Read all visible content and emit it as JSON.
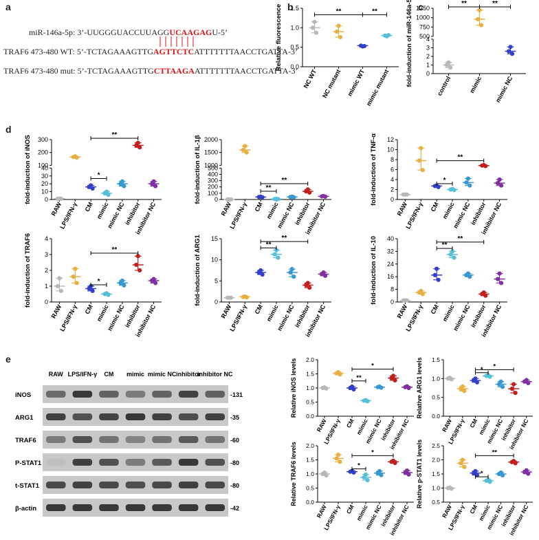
{
  "panels": {
    "a": "a",
    "b": "b",
    "c": "c",
    "d": "d",
    "e": "e"
  },
  "seq": {
    "mir_pre": "miR-146a-5p: 3’-UUGGGUACCUUAGG",
    "mir_hl": "UCAAGAG",
    "mir_post": "U-5’",
    "wt_pre": "TRAF6 473-480 WT: 5’-TCTAGAAAGTTG",
    "wt_hl": "AGTTCTC",
    "wt_post": "ATTTTTTTAACCTGATTA-3’",
    "mut_pre": "TRAF6 473-480 mut: 5’-TCTAGAAAGTTG",
    "mut_hl": "CTTAAGA",
    "mut_post": "ATTTTTTTAACCTGATTA-3’"
  },
  "chart_data": [
    {
      "id": "b",
      "type": "scatter",
      "ylabel": "Relative fluorescence",
      "categories": [
        "NC WT",
        "NC mutant",
        "mimic WT",
        "mimic mutant"
      ],
      "colors": [
        "#b8b8b8",
        "#e8b040",
        "#3540c8",
        "#55c0d8"
      ],
      "ylim": [
        0,
        1.5
      ],
      "yticks": [
        0,
        0.5,
        1,
        1.5
      ],
      "ytick_labels": [
        "0.0",
        "0.5",
        "1.0",
        "1.5"
      ],
      "values": [
        [
          1.0,
          1.15,
          0.87
        ],
        [
          0.9,
          1.05,
          0.76
        ],
        [
          0.54,
          0.52,
          0.53
        ],
        [
          0.8,
          0.78,
          0.81
        ]
      ],
      "sig": [
        {
          "from": 0,
          "to": 2,
          "level": 1.3,
          "text": "**"
        },
        {
          "from": 2,
          "to": 3,
          "level": 1.3,
          "text": "**"
        }
      ]
    },
    {
      "id": "c",
      "type": "scatter",
      "ylabel": "fold-induction of miR-146a-5p",
      "categories": [
        "control",
        "mimic",
        "mimic NC"
      ],
      "colors": [
        "#b8b8b8",
        "#e8b040",
        "#3540c8"
      ],
      "ylim": [
        0,
        1250
      ],
      "yticks": [
        0,
        1,
        2,
        3,
        4,
        500,
        750,
        1000,
        1250
      ],
      "ytick_labels": [
        "0",
        "1",
        "2",
        "3",
        "4",
        "500",
        "750",
        "1000",
        "1250"
      ],
      "break": [
        4,
        500
      ],
      "values": [
        [
          1.0,
          1.3,
          0.7
        ],
        [
          960,
          1200,
          800
        ],
        [
          2.6,
          3.1,
          2.3
        ]
      ],
      "sig": [
        {
          "from": 0,
          "to": 1,
          "level": 1300,
          "text": "**"
        },
        {
          "from": 1,
          "to": 2,
          "level": 1300,
          "text": "**"
        }
      ]
    },
    {
      "id": "d1",
      "type": "scatter",
      "ylabel": "fold-induction of iNOS",
      "categories": [
        "RAW",
        "LPS/IFN-γ",
        "CM",
        "mimic",
        "mimic NC",
        "inhibitor",
        "inhibitor NC"
      ],
      "colors": [
        "#b8b8b8",
        "#e8b040",
        "#3540c8",
        "#55c0d8",
        "#3898d0",
        "#c02020",
        "#8030a0"
      ],
      "ylim": [
        0,
        300
      ],
      "yticks": [
        0,
        10,
        20,
        30,
        40,
        100,
        200,
        300
      ],
      "ytick_labels": [
        "0",
        "10",
        "20",
        "30",
        "40",
        "100",
        "200",
        "300"
      ],
      "break": [
        40,
        100
      ],
      "values": [
        [
          1,
          1.1,
          0.9
        ],
        [
          165,
          170,
          160
        ],
        [
          16,
          18,
          14
        ],
        [
          8,
          10,
          6
        ],
        [
          20,
          23,
          17
        ],
        [
          255,
          275,
          240
        ],
        [
          20,
          23,
          17
        ]
      ],
      "sig": [
        {
          "from": 2,
          "to": 3,
          "level": 25,
          "text": "*"
        },
        {
          "from": 2,
          "to": 5,
          "level": 300,
          "text": "**"
        }
      ]
    },
    {
      "id": "d2",
      "type": "scatter",
      "ylabel": "fold-induction of IL-1β",
      "categories": [
        "RAW",
        "LPS/IFN-γ",
        "CM",
        "mimic",
        "mimic NC",
        "inhibitor",
        "inhibitor NC"
      ],
      "colors": [
        "#b8b8b8",
        "#e8b040",
        "#3540c8",
        "#55c0d8",
        "#3898d0",
        "#c02020",
        "#8030a0"
      ],
      "ylim": [
        0,
        2000
      ],
      "yticks": [
        0,
        100,
        200,
        300,
        400,
        500,
        1000,
        1500,
        2000
      ],
      "ytick_labels": [
        "0",
        "100",
        "200",
        "300",
        "400",
        "500",
        "1000",
        "1500",
        "2000"
      ],
      "break": [
        500,
        1000
      ],
      "values": [
        [
          1,
          1,
          1
        ],
        [
          1600,
          1750,
          1500
        ],
        [
          40,
          45,
          35
        ],
        [
          8,
          10,
          6
        ],
        [
          40,
          45,
          35
        ],
        [
          130,
          160,
          110
        ],
        [
          50,
          55,
          45
        ]
      ],
      "sig": [
        {
          "from": 2,
          "to": 3,
          "level": 110,
          "text": "**"
        },
        {
          "from": 2,
          "to": 5,
          "level": 230,
          "text": "**"
        }
      ]
    },
    {
      "id": "d3",
      "type": "scatter",
      "ylabel": "fold-induction of TNF-α",
      "categories": [
        "RAW",
        "LPS/IFN-γ",
        "CM",
        "mimic",
        "mimic NC",
        "inhibitor",
        "inhibitor NC"
      ],
      "colors": [
        "#b8b8b8",
        "#e8b040",
        "#3540c8",
        "#55c0d8",
        "#3898d0",
        "#c02020",
        "#8030a0"
      ],
      "ylim": [
        0,
        12
      ],
      "yticks": [
        0,
        2,
        4,
        6,
        8,
        10,
        12
      ],
      "ytick_labels": [
        "0",
        "2",
        "4",
        "6",
        "8",
        "10",
        "12"
      ],
      "values": [
        [
          1,
          1,
          1
        ],
        [
          7.8,
          10.3,
          5.9
        ],
        [
          2.7,
          2.8,
          2.5
        ],
        [
          2.0,
          2.1,
          1.9
        ],
        [
          3.4,
          4.2,
          2.8
        ],
        [
          6.8,
          6.9,
          6.7
        ],
        [
          3.3,
          4.0,
          2.8
        ]
      ],
      "sig": [
        {
          "from": 2,
          "to": 3,
          "level": 2.9,
          "text": "*"
        },
        {
          "from": 2,
          "to": 5,
          "level": 7.5,
          "text": "**"
        }
      ]
    },
    {
      "id": "d4",
      "type": "scatter",
      "ylabel": "fold-induction of TRAF6",
      "categories": [
        "RAW",
        "LPS/IFN-γ",
        "CM",
        "mimic",
        "mimic NC",
        "inhibitor",
        "inhibitor NC"
      ],
      "colors": [
        "#b8b8b8",
        "#e8b040",
        "#3540c8",
        "#55c0d8",
        "#3898d0",
        "#c02020",
        "#8030a0"
      ],
      "ylim": [
        0,
        4
      ],
      "yticks": [
        0,
        1,
        2,
        3,
        4
      ],
      "ytick_labels": [
        "0",
        "1",
        "2",
        "3",
        "4"
      ],
      "values": [
        [
          1,
          1.5,
          0.7
        ],
        [
          1.6,
          2.1,
          1.2
        ],
        [
          0.85,
          1.0,
          0.7
        ],
        [
          0.5,
          0.55,
          0.45
        ],
        [
          1.2,
          1.35,
          1.05
        ],
        [
          2.35,
          2.9,
          2.0
        ],
        [
          1.35,
          1.45,
          1.2
        ]
      ],
      "sig": [
        {
          "from": 2,
          "to": 3,
          "level": 1.0,
          "text": "*"
        },
        {
          "from": 2,
          "to": 5,
          "level": 3.0,
          "text": "**"
        }
      ]
    },
    {
      "id": "d5",
      "type": "scatter",
      "ylabel": "fold-induction of ARG1",
      "categories": [
        "RAW",
        "LPS/IFN-γ",
        "CM",
        "mimic",
        "mimic NC",
        "inhibitor",
        "inhibitor NC"
      ],
      "colors": [
        "#b8b8b8",
        "#e8b040",
        "#3540c8",
        "#55c0d8",
        "#3898d0",
        "#c02020",
        "#8030a0"
      ],
      "ylim": [
        0,
        15
      ],
      "yticks": [
        0,
        5,
        10,
        15
      ],
      "ytick_labels": [
        "0",
        "5",
        "10",
        "15"
      ],
      "values": [
        [
          1,
          1,
          1
        ],
        [
          1.2,
          1.3,
          1.1
        ],
        [
          7,
          7.5,
          6.5
        ],
        [
          11.3,
          12.3,
          10.5
        ],
        [
          7,
          7.8,
          6.0
        ],
        [
          4,
          4.5,
          3.4
        ],
        [
          6.6,
          7.0,
          6.2
        ]
      ],
      "sig": [
        {
          "from": 2,
          "to": 3,
          "level": 12.5,
          "text": "**"
        },
        {
          "from": 2,
          "to": 5,
          "level": 14,
          "text": "**"
        }
      ]
    },
    {
      "id": "d6",
      "type": "scatter",
      "ylabel": "fold-induction of IL-10",
      "categories": [
        "RAW",
        "LPS/IFN-γ",
        "CM",
        "mimic",
        "mimic NC",
        "inhibitor",
        "inhibitor NC"
      ],
      "colors": [
        "#b8b8b8",
        "#e8b040",
        "#3540c8",
        "#55c0d8",
        "#3898d0",
        "#c02020",
        "#8030a0"
      ],
      "ylim": [
        0,
        40
      ],
      "yticks": [
        0,
        8,
        16,
        24,
        32,
        40
      ],
      "ytick_labels": [
        "0",
        "8",
        "16",
        "24",
        "32",
        "40"
      ],
      "values": [
        [
          1,
          1,
          1
        ],
        [
          6,
          7,
          5
        ],
        [
          17,
          21,
          14
        ],
        [
          30,
          32,
          28
        ],
        [
          17,
          18,
          16
        ],
        [
          5,
          6,
          4
        ],
        [
          14.5,
          18,
          12
        ]
      ],
      "sig": [
        {
          "from": 2,
          "to": 3,
          "level": 33,
          "text": "**"
        },
        {
          "from": 2,
          "to": 5,
          "level": 37,
          "text": "**"
        }
      ]
    },
    {
      "id": "e1",
      "type": "scatter",
      "ylabel": "Relative iNOS levels",
      "categories": [
        "RAW",
        "LPS/IFN-γ",
        "CM",
        "mimic",
        "mimic NC",
        "inhibitor",
        "inhibitor NC"
      ],
      "colors": [
        "#b8b8b8",
        "#e8b040",
        "#3540c8",
        "#55c0d8",
        "#3898d0",
        "#c02020",
        "#8030a0"
      ],
      "ylim": [
        0,
        2.0
      ],
      "yticks": [
        0,
        0.5,
        1.0,
        1.5,
        2.0
      ],
      "ytick_labels": [
        "0.0",
        "0.5",
        "1.0",
        "1.5",
        "2.0"
      ],
      "values": [
        [
          1.0,
          1.02,
          0.98
        ],
        [
          1.52,
          1.56,
          1.48
        ],
        [
          1.0,
          1.05,
          0.95
        ],
        [
          0.55,
          0.57,
          0.53
        ],
        [
          1.03,
          1.05,
          1.01
        ],
        [
          1.35,
          1.43,
          1.27
        ],
        [
          1.03,
          1.06,
          1.0
        ]
      ],
      "sig": [
        {
          "from": 2,
          "to": 3,
          "level": 1.2,
          "text": "**"
        },
        {
          "from": 2,
          "to": 5,
          "level": 1.62,
          "text": "*"
        }
      ]
    },
    {
      "id": "e2",
      "type": "scatter",
      "ylabel": "Relative ARG1 levels",
      "categories": [
        "RAW",
        "LPS/IFN-γ",
        "CM",
        "mimic",
        "mimic NC",
        "inhibitor",
        "inhibitor NC"
      ],
      "colors": [
        "#b8b8b8",
        "#e8b040",
        "#3540c8",
        "#55c0d8",
        "#3898d0",
        "#c02020",
        "#8030a0"
      ],
      "ylim": [
        0,
        1.5
      ],
      "yticks": [
        0,
        0.5,
        1.0,
        1.5
      ],
      "ytick_labels": [
        "0.0",
        "0.5",
        "1.0",
        "1.5"
      ],
      "values": [
        [
          1.0,
          1.02,
          0.98
        ],
        [
          0.73,
          0.79,
          0.67
        ],
        [
          0.95,
          1.0,
          0.9
        ],
        [
          1.07,
          1.09,
          1.05
        ],
        [
          0.85,
          0.92,
          0.78
        ],
        [
          0.73,
          0.85,
          0.62
        ],
        [
          0.92,
          0.96,
          0.88
        ]
      ],
      "sig": [
        {
          "from": 2,
          "to": 3,
          "level": 1.12,
          "text": "*"
        },
        {
          "from": 2,
          "to": 5,
          "level": 1.2,
          "text": "*"
        }
      ]
    },
    {
      "id": "e3",
      "type": "scatter",
      "ylabel": "Relative TRAF6 levels",
      "categories": [
        "RAW",
        "LPS/IFN-γ",
        "CM",
        "mimic",
        "mimic NC",
        "inhibitor",
        "inhibitor NC"
      ],
      "colors": [
        "#b8b8b8",
        "#e8b040",
        "#3540c8",
        "#55c0d8",
        "#3898d0",
        "#c02020",
        "#8030a0"
      ],
      "ylim": [
        0,
        2.0
      ],
      "yticks": [
        0,
        0.5,
        1.0,
        1.5,
        2.0
      ],
      "ytick_labels": [
        "0.0",
        "0.5",
        "1.0",
        "1.5",
        "2.0"
      ],
      "values": [
        [
          1.0,
          1.05,
          0.95
        ],
        [
          1.55,
          1.68,
          1.43
        ],
        [
          1.08,
          1.11,
          1.05
        ],
        [
          0.88,
          0.98,
          0.78
        ],
        [
          1.03,
          1.1,
          0.96
        ],
        [
          1.43,
          1.47,
          1.39
        ],
        [
          1.05,
          1.12,
          0.98
        ]
      ],
      "sig": [
        {
          "from": 2,
          "to": 3,
          "level": 1.13,
          "text": "*"
        },
        {
          "from": 2,
          "to": 5,
          "level": 1.6,
          "text": "*"
        }
      ]
    },
    {
      "id": "e4",
      "type": "scatter",
      "ylabel": "Relative p-STAT1 levels",
      "categories": [
        "RAW",
        "LPS/IFN-γ",
        "CM",
        "mimic",
        "mimic NC",
        "inhibitor",
        "inhibitor NC"
      ],
      "colors": [
        "#b8b8b8",
        "#e8b040",
        "#3540c8",
        "#55c0d8",
        "#3898d0",
        "#c02020",
        "#8030a0"
      ],
      "ylim": [
        0.5,
        2.5
      ],
      "yticks": [
        0.5,
        1.0,
        1.5,
        2.0,
        2.5
      ],
      "ytick_labels": [
        "0.5",
        "1.0",
        "1.5",
        "2.0",
        "2.5"
      ],
      "values": [
        [
          1.0,
          1.02,
          0.98
        ],
        [
          1.88,
          2.0,
          1.75
        ],
        [
          1.53,
          1.6,
          1.46
        ],
        [
          1.26,
          1.3,
          1.22
        ],
        [
          1.5,
          1.55,
          1.45
        ],
        [
          1.92,
          1.96,
          1.88
        ],
        [
          1.57,
          1.63,
          1.51
        ]
      ],
      "sig": [
        {
          "from": 2,
          "to": 3,
          "level": 1.35,
          "text": "*"
        },
        {
          "from": 2,
          "to": 5,
          "level": 2.1,
          "text": "**"
        }
      ]
    }
  ],
  "blot": {
    "lanes": [
      "RAW",
      "LPS/IFN-γ",
      "CM",
      "mimic",
      "mimic NC",
      "inhibitor",
      "inhibitor NC"
    ],
    "rows": [
      {
        "name": "iNOS",
        "kda": "-131",
        "intensity": [
          0.55,
          0.85,
          0.6,
          0.45,
          0.6,
          0.78,
          0.6
        ]
      },
      {
        "name": "ARG1",
        "kda": "-35",
        "intensity": [
          0.8,
          0.7,
          0.78,
          0.85,
          0.8,
          0.72,
          0.8
        ]
      },
      {
        "name": "TRAF6",
        "kda": "-60",
        "intensity": [
          0.45,
          0.7,
          0.5,
          0.4,
          0.5,
          0.65,
          0.5
        ]
      },
      {
        "name": "P-STAT1",
        "kda": "-80",
        "intensity": [
          0.05,
          0.8,
          0.7,
          0.45,
          0.65,
          0.85,
          0.7
        ]
      },
      {
        "name": "t-STAT1",
        "kda": "-80",
        "intensity": [
          0.75,
          0.8,
          0.75,
          0.72,
          0.75,
          0.8,
          0.75
        ]
      },
      {
        "name": "β-actin",
        "kda": "-42",
        "intensity": [
          0.85,
          0.85,
          0.85,
          0.85,
          0.85,
          0.85,
          0.85
        ]
      }
    ]
  }
}
